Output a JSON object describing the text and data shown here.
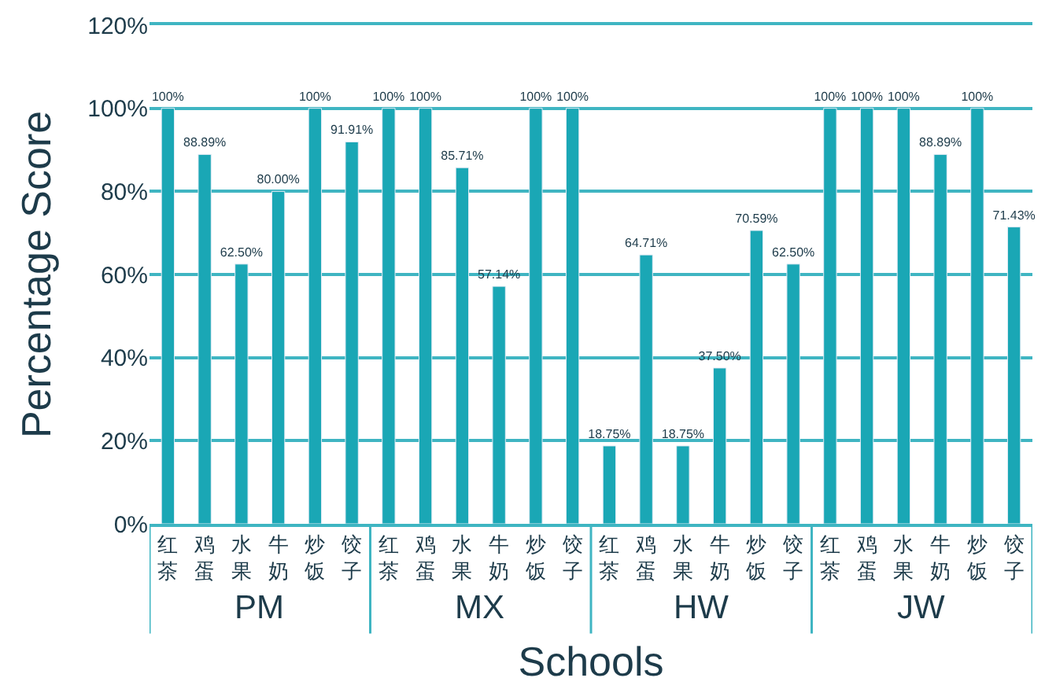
{
  "chart_data": {
    "type": "bar",
    "xlabel": "Schools",
    "ylabel": "Percentage Score",
    "categories": [
      "红茶",
      "鸡蛋",
      "水果",
      "牛奶",
      "炒饭",
      "饺子",
      "红茶",
      "鸡蛋",
      "水果",
      "牛奶",
      "炒饭",
      "饺子",
      "红茶",
      "鸡蛋",
      "水果",
      "牛奶",
      "炒饭",
      "饺子",
      "红茶",
      "鸡蛋",
      "水果",
      "牛奶",
      "炒饭",
      "饺子"
    ],
    "values": [
      100,
      88.89,
      62.5,
      80,
      100,
      91.91,
      100,
      100,
      85.71,
      57.14,
      100,
      100,
      18.75,
      64.71,
      18.75,
      37.5,
      70.59,
      62.5,
      100,
      100,
      100,
      88.89,
      100,
      71.43
    ],
    "value_labels": [
      "100%",
      "88.89%",
      "62.50%",
      "80.00%",
      "100%",
      "91.91%",
      "100%",
      "100%",
      "85.71%",
      "57.14%",
      "100%",
      "100%",
      "18.75%",
      "64.71%",
      "18.75%",
      "37.50%",
      "70.59%",
      "62.50%",
      "100%",
      "100%",
      "100%",
      "88.89%",
      "100%",
      "71.43%"
    ],
    "color": "#1aa7b5",
    "ylim": [
      0,
      120
    ],
    "yticks": [
      {
        "value": 0,
        "label": "0%"
      },
      {
        "value": 20,
        "label": "20%"
      },
      {
        "value": 40,
        "label": "40%"
      },
      {
        "value": 60,
        "label": "60%"
      },
      {
        "value": 80,
        "label": "80%"
      },
      {
        "value": 100,
        "label": "100%"
      },
      {
        "value": 120,
        "label": "120%"
      }
    ],
    "grid": "y",
    "annotations": [
      "PM",
      "MX",
      "HW",
      "JW"
    ]
  }
}
